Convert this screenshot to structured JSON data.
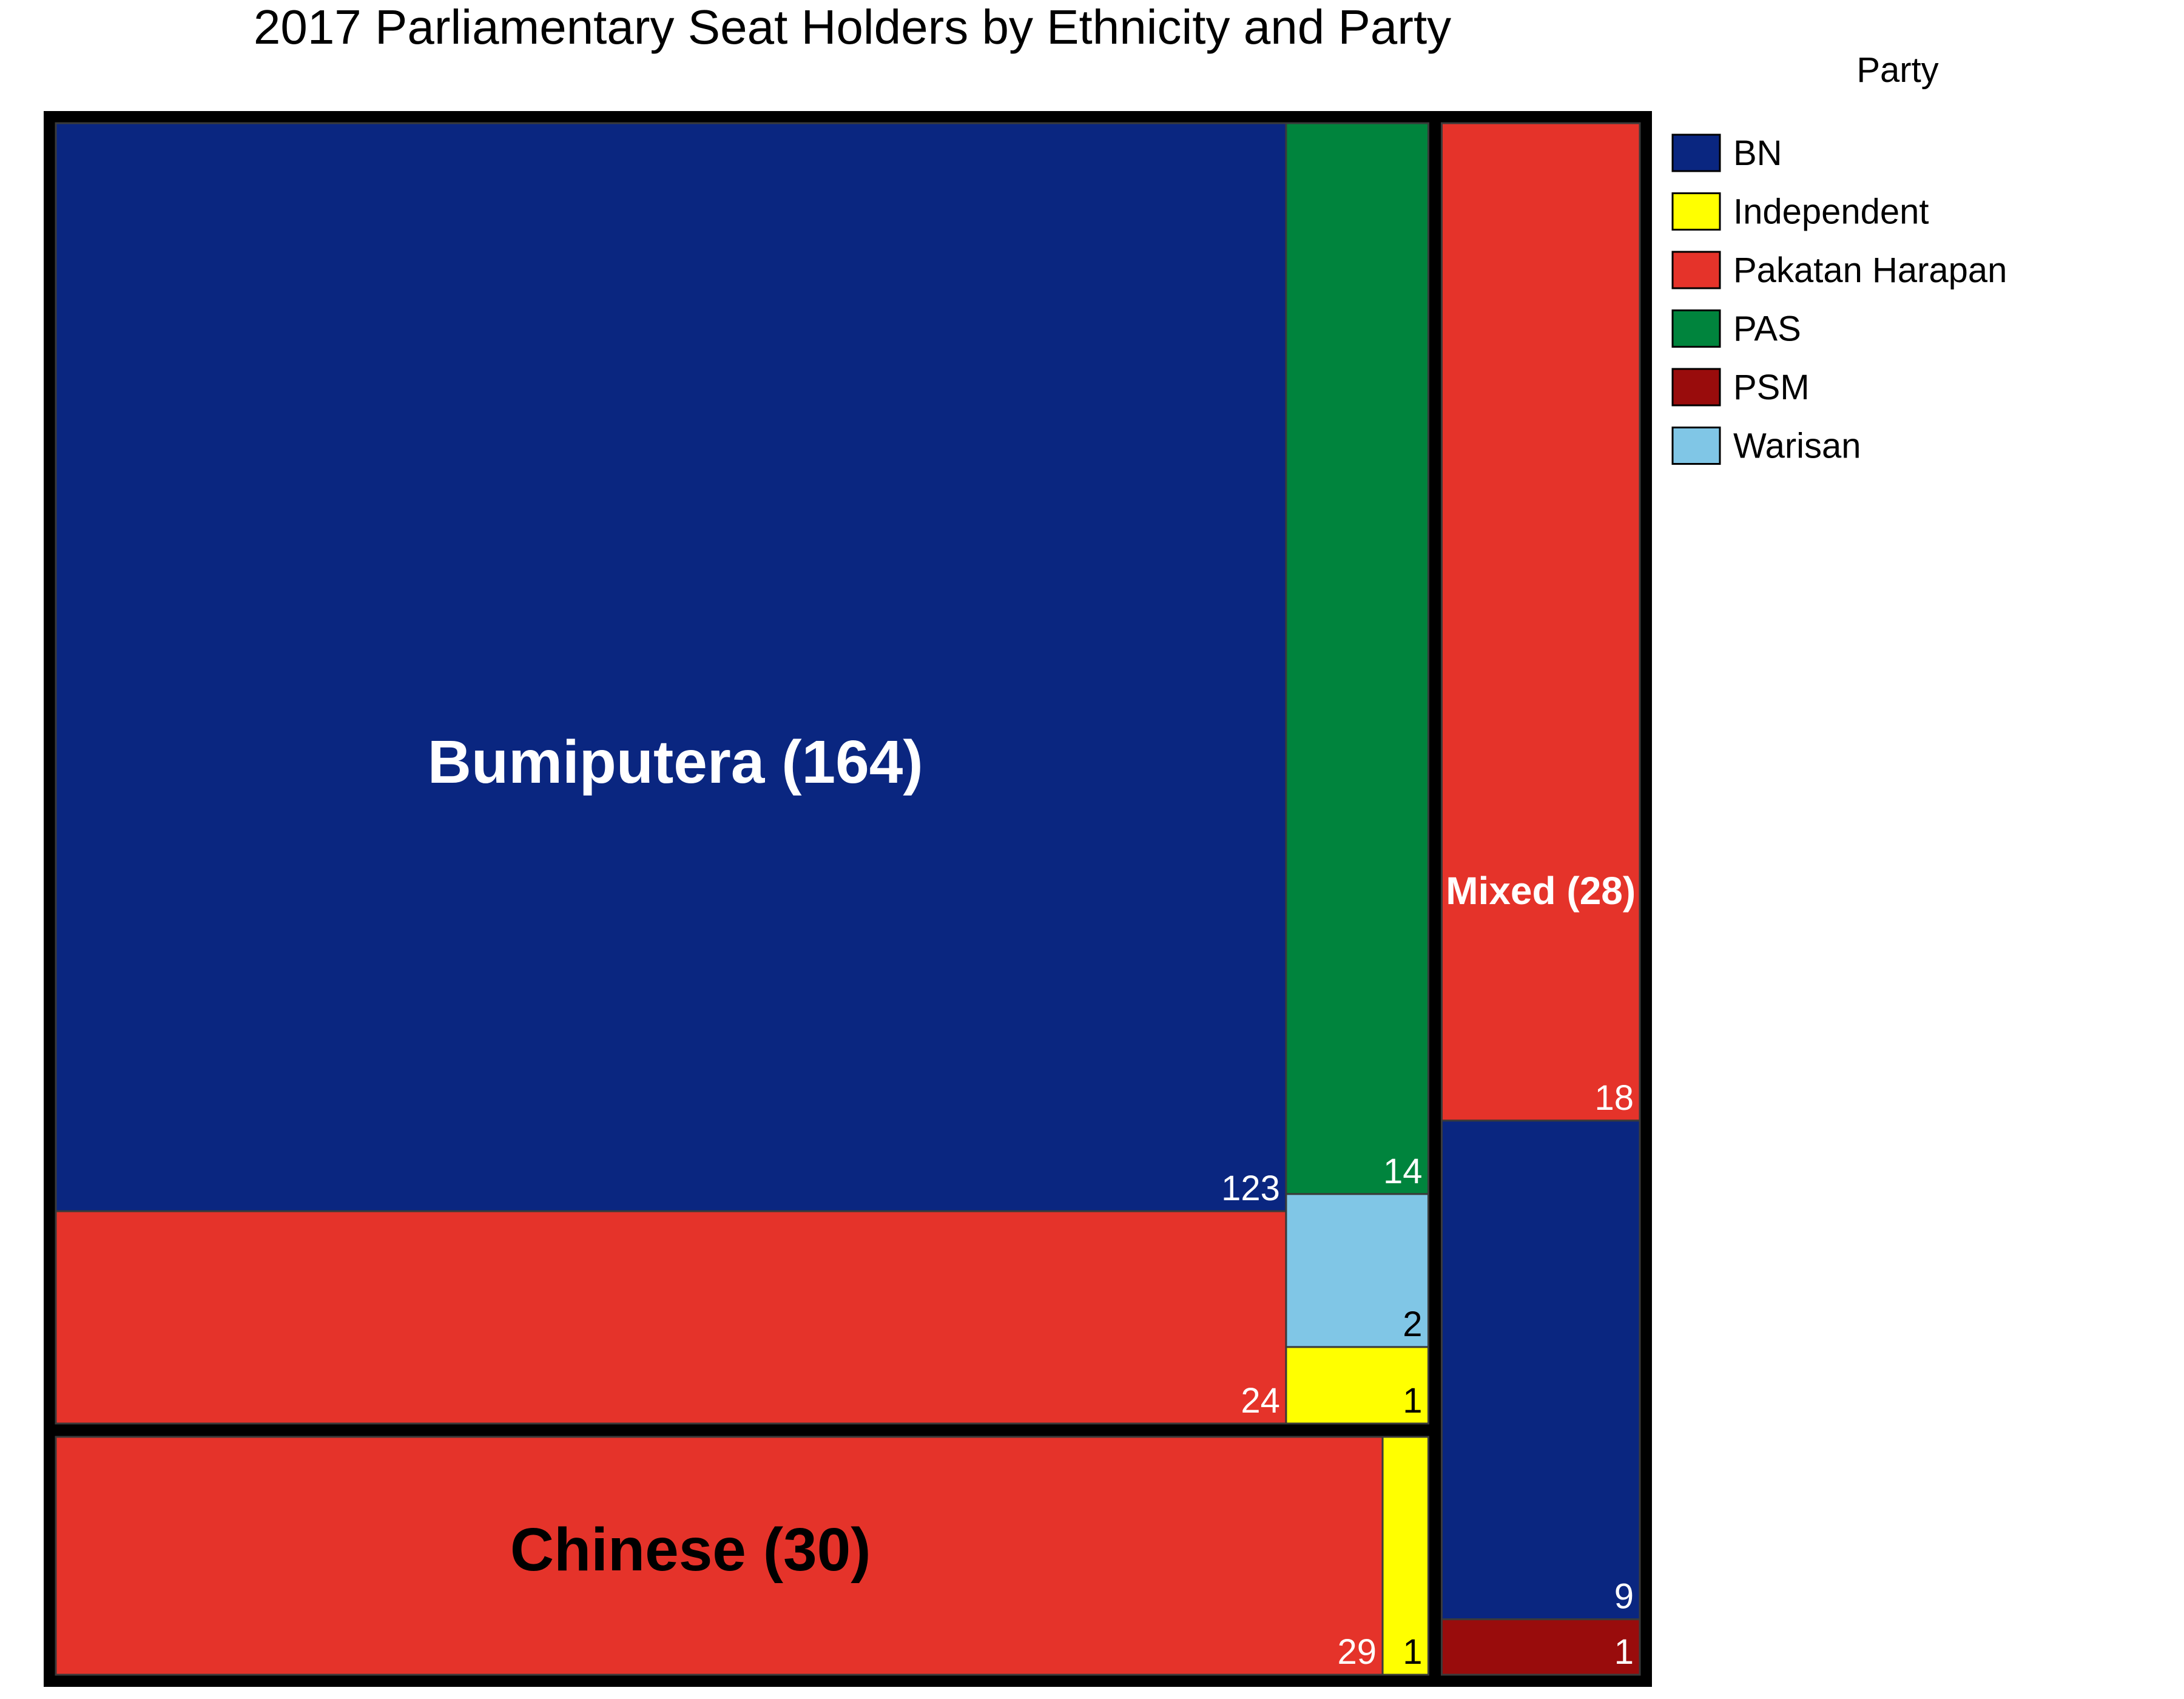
{
  "chart_data": {
    "type": "treemap",
    "title": "2017 Parliamentary Seat Holders by Ethnicity and Party",
    "legend": {
      "title": "Party",
      "placement": "right",
      "entries": [
        {
          "name": "BN",
          "color": "#0a2680"
        },
        {
          "name": "Independent",
          "color": "#ffff00"
        },
        {
          "name": "Pakatan Harapan",
          "color": "#e5332a"
        },
        {
          "name": "PAS",
          "color": "#00843d"
        },
        {
          "name": "PSM",
          "color": "#990c0c"
        },
        {
          "name": "Warisan",
          "color": "#80c6e6"
        }
      ]
    },
    "groups": [
      {
        "name": "Bumiputera",
        "label": "Bumiputera (164)",
        "total": 164,
        "label_color": "#ffffff",
        "items": [
          {
            "party": "BN",
            "value": 123,
            "label_color": "#ffffff"
          },
          {
            "party": "Pakatan Harapan",
            "value": 24,
            "label_color": "#ffffff"
          },
          {
            "party": "PAS",
            "value": 14,
            "label_color": "#ffffff"
          },
          {
            "party": "Warisan",
            "value": 2,
            "label_color": "#000000"
          },
          {
            "party": "Independent",
            "value": 1,
            "label_color": "#000000"
          }
        ]
      },
      {
        "name": "Chinese",
        "label": "Chinese (30)",
        "total": 30,
        "label_color": "#000000",
        "items": [
          {
            "party": "Pakatan Harapan",
            "value": 29,
            "label_color": "#ffffff"
          },
          {
            "party": "Independent",
            "value": 1,
            "label_color": "#000000"
          }
        ]
      },
      {
        "name": "Mixed",
        "label": "Mixed (28)",
        "total": 28,
        "label_color": "#ffffff",
        "items": [
          {
            "party": "Pakatan Harapan",
            "value": 18,
            "label_color": "#ffffff"
          },
          {
            "party": "BN",
            "value": 9,
            "label_color": "#ffffff"
          },
          {
            "party": "PSM",
            "value": 1,
            "label_color": "#ffffff"
          }
        ]
      }
    ]
  }
}
